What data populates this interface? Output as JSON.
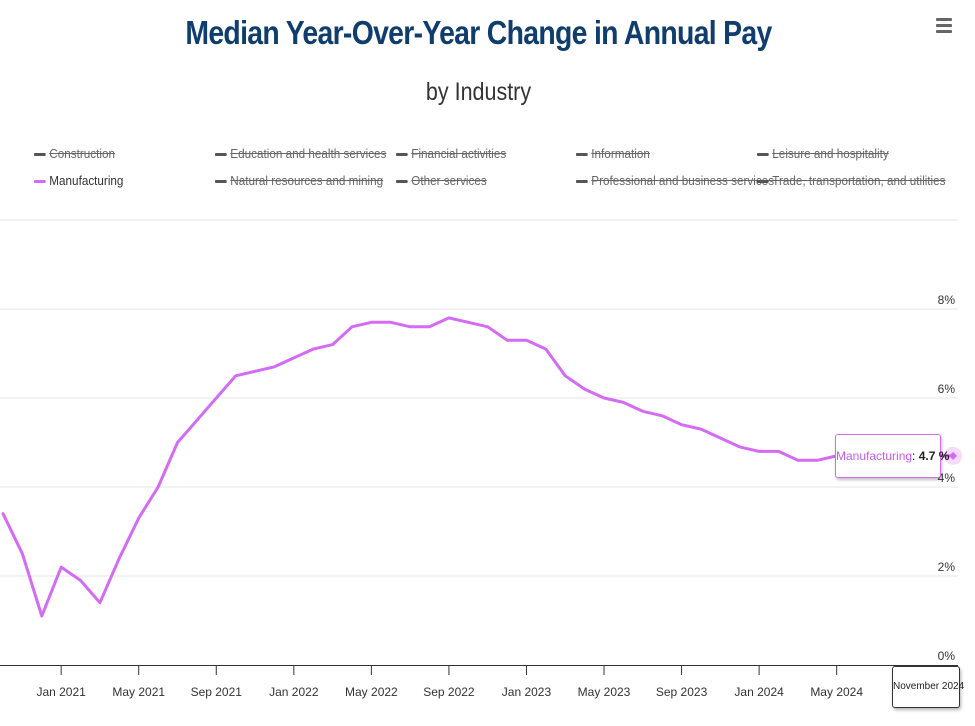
{
  "header": {
    "title": "Median Year-Over-Year Change in Annual Pay",
    "subtitle": "by Industry",
    "menu_icon": "hamburger-menu-icon"
  },
  "legend": {
    "items": [
      {
        "label": "Construction",
        "visible": false,
        "color": "#555555"
      },
      {
        "label": "Education and health services",
        "visible": false,
        "color": "#555555"
      },
      {
        "label": "Financial activities",
        "visible": false,
        "color": "#555555"
      },
      {
        "label": "Information",
        "visible": false,
        "color": "#555555"
      },
      {
        "label": "Leisure and hospitality",
        "visible": false,
        "color": "#555555"
      },
      {
        "label": "Manufacturing",
        "visible": true,
        "color": "#d46bf5"
      },
      {
        "label": "Natural resources and mining",
        "visible": false,
        "color": "#555555"
      },
      {
        "label": "Other services",
        "visible": false,
        "color": "#555555"
      },
      {
        "label": "Professional and business services",
        "visible": false,
        "color": "#555555"
      },
      {
        "label": "Trade, transportation, and utilities",
        "visible": false,
        "color": "#555555"
      }
    ]
  },
  "tooltip": {
    "series": "Manufacturing",
    "separator": ": ",
    "value": "4.7 %",
    "x_label": "November 2024"
  },
  "chart_data": {
    "type": "line",
    "title": "Median Year-Over-Year Change in Annual Pay",
    "subtitle": "by Industry",
    "xlabel": "",
    "ylabel": "",
    "ylim": [
      0,
      10
    ],
    "y_ticks": [
      0,
      2,
      4,
      6,
      8,
      10
    ],
    "y_tick_labels": [
      "0%",
      "2%",
      "4%",
      "6%",
      "8%",
      ""
    ],
    "x_tick_labels": [
      "Jan 2021",
      "May 2021",
      "Sep 2021",
      "Jan 2022",
      "May 2022",
      "Sep 2022",
      "Jan 2023",
      "May 2023",
      "Sep 2023",
      "Jan 2024",
      "May 2024"
    ],
    "grid": true,
    "legend_position": "top",
    "x": [
      "Oct 2020",
      "Nov 2020",
      "Dec 2020",
      "Jan 2021",
      "Feb 2021",
      "Mar 2021",
      "Apr 2021",
      "May 2021",
      "Jun 2021",
      "Jul 2021",
      "Aug 2021",
      "Sep 2021",
      "Oct 2021",
      "Nov 2021",
      "Dec 2021",
      "Jan 2022",
      "Feb 2022",
      "Mar 2022",
      "Apr 2022",
      "May 2022",
      "Jun 2022",
      "Jul 2022",
      "Aug 2022",
      "Sep 2022",
      "Oct 2022",
      "Nov 2022",
      "Dec 2022",
      "Jan 2023",
      "Feb 2023",
      "Mar 2023",
      "Apr 2023",
      "May 2023",
      "Jun 2023",
      "Jul 2023",
      "Aug 2023",
      "Sep 2023",
      "Oct 2023",
      "Nov 2023",
      "Dec 2023",
      "Jan 2024",
      "Feb 2024",
      "Mar 2024",
      "Apr 2024",
      "May 2024",
      "Jun 2024",
      "Jul 2024",
      "Aug 2024",
      "Sep 2024",
      "Oct 2024",
      "Nov 2024"
    ],
    "series": [
      {
        "name": "Manufacturing",
        "color": "#d46bf5",
        "values": [
          3.4,
          2.5,
          1.1,
          2.2,
          1.9,
          1.4,
          2.4,
          3.3,
          4.0,
          5.0,
          5.5,
          6.0,
          6.5,
          6.6,
          6.7,
          6.9,
          7.1,
          7.2,
          7.6,
          7.7,
          7.7,
          7.6,
          7.6,
          7.8,
          7.7,
          7.6,
          7.3,
          7.3,
          7.1,
          6.5,
          6.2,
          6.0,
          5.9,
          5.7,
          5.6,
          5.4,
          5.3,
          5.1,
          4.9,
          4.8,
          4.8,
          4.6,
          4.6,
          4.7,
          4.7,
          4.7,
          4.7,
          4.7,
          4.7,
          4.7
        ]
      }
    ],
    "highlighted_point": {
      "x": "Nov 2024",
      "series": "Manufacturing",
      "value": 4.7
    }
  }
}
